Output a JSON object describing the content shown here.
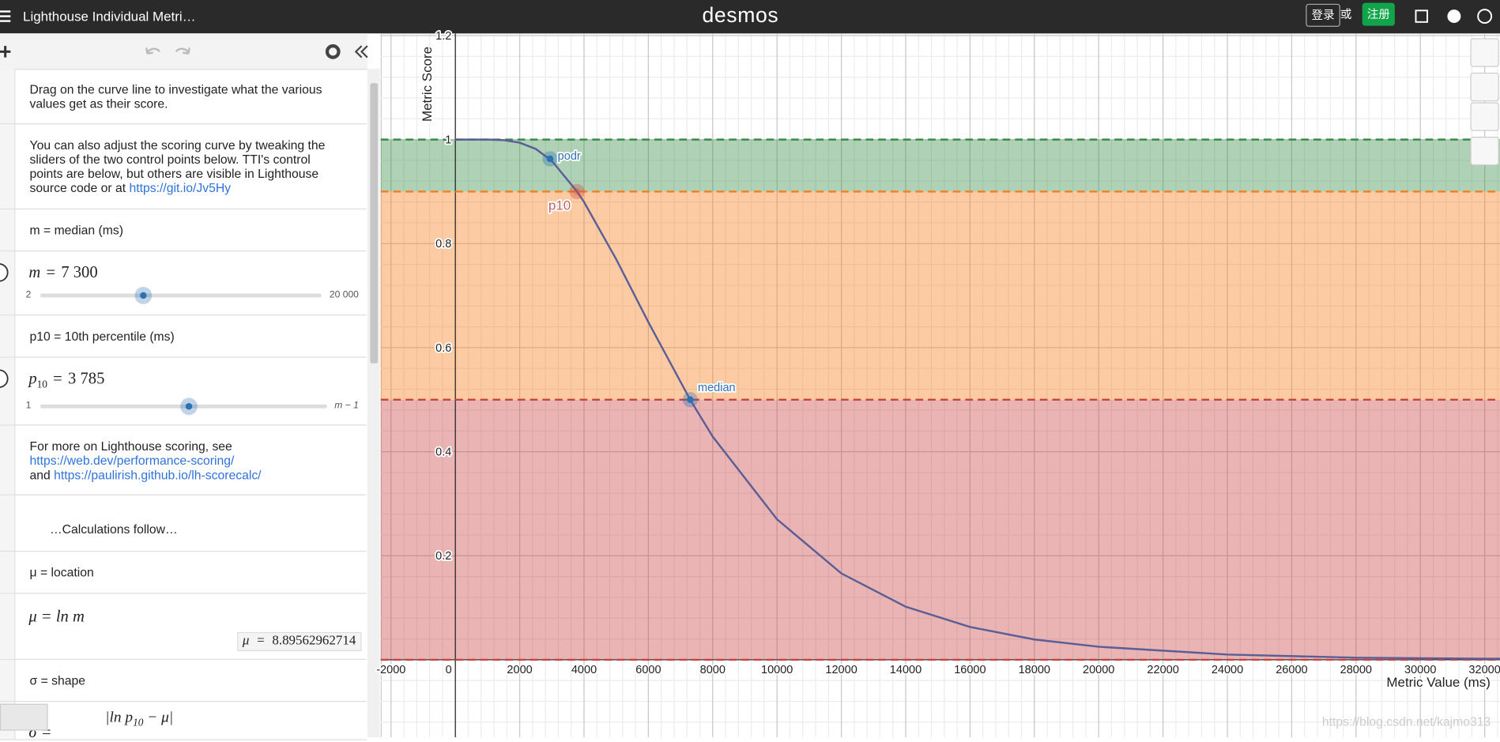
{
  "header": {
    "title": "Lighthouse Individual Metri…",
    "logo": "desmos",
    "login": "登录",
    "or": "或",
    "signup": "注册"
  },
  "expressions": [
    {
      "type": "note",
      "text": "Drag on the curve line to investigate what the various values get as their score."
    },
    {
      "type": "note",
      "text": "You can also adjust the scoring curve by tweaking the sliders of the two control points below. TTI's control points are below, but others are visible in Lighthouse source code or at ",
      "link": "https://git.io/Jv5Hy"
    },
    {
      "type": "note",
      "text": "m = median (ms)"
    },
    {
      "type": "slider",
      "lhs": "m",
      "eq": "=",
      "value": 7300,
      "value_label": "7 300",
      "min": 2,
      "max": {
        "value": 20000,
        "label": "20 000"
      }
    },
    {
      "type": "note",
      "text": "p10 = 10th percentile (ms)"
    },
    {
      "type": "slider",
      "lhs": "p",
      "lhs_sub": "10",
      "eq": "=",
      "value": 3785,
      "value_label": "3 785",
      "min": 1,
      "max": {
        "value": 7299,
        "label": "m − 1"
      }
    },
    {
      "type": "note",
      "text": "For more on Lighthouse scoring, see ",
      "links": [
        "https://web.dev/performance-scoring/",
        "https://paulirish.github.io/lh-scorecalc/"
      ],
      "joiner": " and "
    },
    {
      "type": "note",
      "text": "…Calculations follow…",
      "indent": true
    },
    {
      "type": "note",
      "text": "μ = location"
    },
    {
      "type": "expression",
      "latex": "μ = ln m",
      "result": {
        "lhs": "μ",
        "eq": "=",
        "value": 8.89562962714
      }
    },
    {
      "type": "note",
      "text": "σ = shape"
    },
    {
      "type": "expression",
      "latex": "σ =",
      "numerator": [
        "|ln p",
        "10",
        " − μ|"
      ]
    }
  ],
  "chart_data": {
    "type": "line",
    "x_label": "Metric Value (ms)",
    "y_label": "Metric Score",
    "xlim": [
      -2320,
      32476
    ],
    "ylim": [
      -0.149,
      1.204
    ],
    "xticks": [
      -2000,
      0,
      2000,
      4000,
      6000,
      8000,
      10000,
      12000,
      14000,
      16000,
      18000,
      20000,
      22000,
      24000,
      26000,
      28000,
      30000,
      32000
    ],
    "yticks": [
      0.2,
      0.4,
      0.6,
      0.8,
      1,
      1.2
    ],
    "grid": true,
    "minor_grid_divisions": 5,
    "bands": [
      {
        "from": 0.9,
        "to": 1,
        "color": "#388c46"
      },
      {
        "from": 0.5,
        "to": 0.9,
        "color": "#fa7e19"
      },
      {
        "from": 0,
        "to": 0.5,
        "color": "#c74440"
      }
    ],
    "thresholds": [
      {
        "value": 1,
        "color": "#388c46"
      },
      {
        "value": 0.9,
        "color": "#fa7e19"
      },
      {
        "value": 0.5,
        "color": "#c74440"
      },
      {
        "value": 0,
        "color": "#c74440"
      }
    ],
    "series": [
      {
        "color": "#5b5e96",
        "x": [
          0,
          1000,
          1500,
          2000,
          2500,
          3000,
          3785,
          4000,
          5000,
          6000,
          7300,
          8000,
          10000,
          12000,
          14000,
          16000,
          18000,
          20000,
          24000,
          28000,
          32000,
          32476
        ],
        "values": [
          1,
          1,
          0.999,
          0.994,
          0.982,
          0.959,
          0.9,
          0.88,
          0.77,
          0.649,
          0.5,
          0.429,
          0.27,
          0.166,
          0.102,
          0.063,
          0.039,
          0.025,
          0.01,
          0.004,
          0.002,
          0.002
        ]
      }
    ],
    "points": [
      {
        "label": "podr",
        "x": 2944,
        "y": 0.963,
        "color": "#2d70b3"
      },
      {
        "label": "p10",
        "x": 3785,
        "y": 0.9,
        "color": "#c74440"
      },
      {
        "label": "median",
        "x": 7300,
        "y": 0.5,
        "color": "#2d70b3"
      }
    ]
  },
  "watermark": "https://blog.csdn.net/kajmo313"
}
